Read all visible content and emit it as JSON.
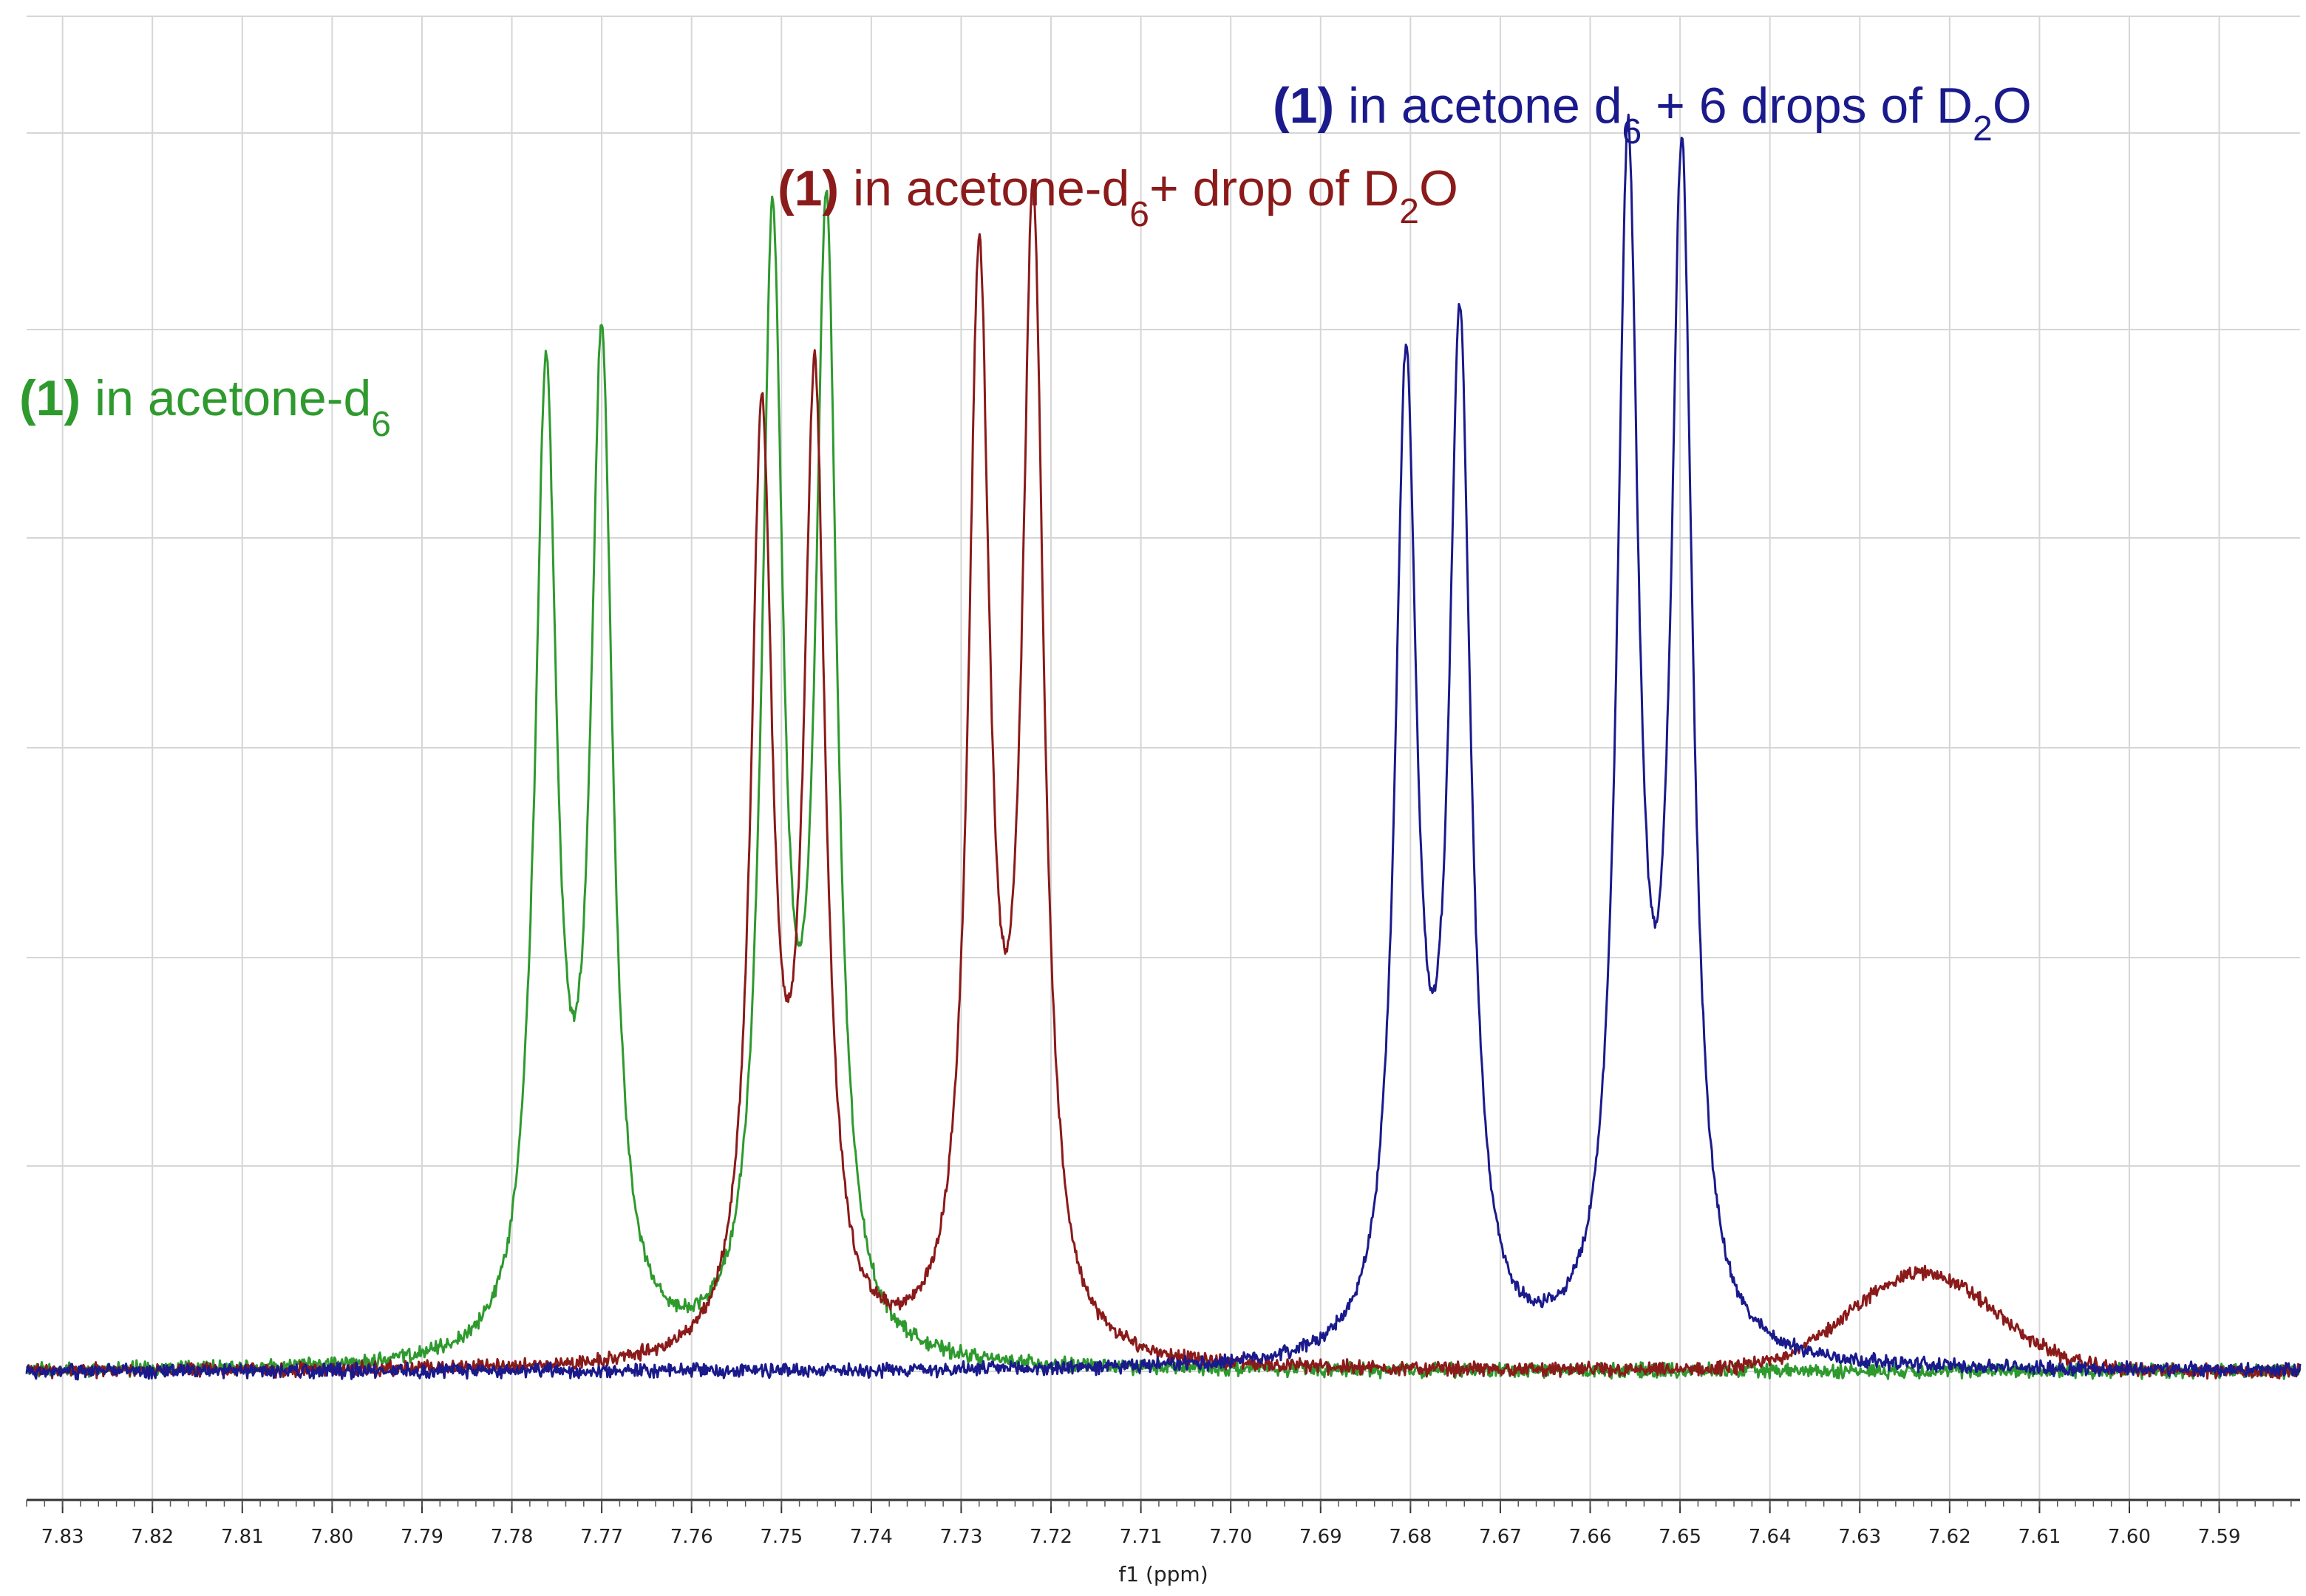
{
  "chart_data": {
    "type": "line",
    "xlabel": "f1 (ppm)",
    "xlim": [
      7.834,
      7.581
    ],
    "x_reversed": true,
    "grid": true,
    "ticks": [
      "7.83",
      "7.82",
      "7.81",
      "7.80",
      "7.79",
      "7.78",
      "7.77",
      "7.76",
      "7.75",
      "7.74",
      "7.73",
      "7.72",
      "7.71",
      "7.70",
      "7.69",
      "7.68",
      "7.67",
      "7.66",
      "7.65",
      "7.64",
      "7.63",
      "7.62",
      "7.61",
      "7.60",
      "7.59"
    ],
    "series": [
      {
        "color": "#2e9a2e",
        "label_number": "(1)",
        "label_text": " in acetone-d",
        "label_sub": "6",
        "label_tail": "",
        "label_tail_sub": "",
        "label_end": "",
        "peaks": [
          [
            7.7785,
            0.02
          ],
          [
            7.7762,
            0.77
          ],
          [
            7.77,
            0.8
          ],
          [
            7.751,
            0.89
          ],
          [
            7.745,
            0.9
          ]
        ]
      },
      {
        "color": "#8b1a1a",
        "label_number": "(1)",
        "label_text": " in acetone-d",
        "label_sub": "6",
        "label_tail": "+ drop of D",
        "label_tail_sub": "2",
        "label_end": "O",
        "peaks": [
          [
            7.7522,
            0.74
          ],
          [
            7.7463,
            0.77
          ],
          [
            7.728,
            0.86
          ],
          [
            7.722,
            0.91
          ]
        ],
        "broad": [
          7.623,
          0.079
        ]
      },
      {
        "color": "#1a1a8c",
        "label_number": "(1)",
        "label_text": " in acetone d",
        "label_sub": "6",
        "label_tail": " + 6 drops of D",
        "label_tail_sub": "2",
        "label_end": "O",
        "peaks": [
          [
            7.6805,
            0.78
          ],
          [
            7.6745,
            0.81
          ],
          [
            7.6558,
            0.95
          ],
          [
            7.6498,
            0.94
          ]
        ]
      }
    ]
  }
}
